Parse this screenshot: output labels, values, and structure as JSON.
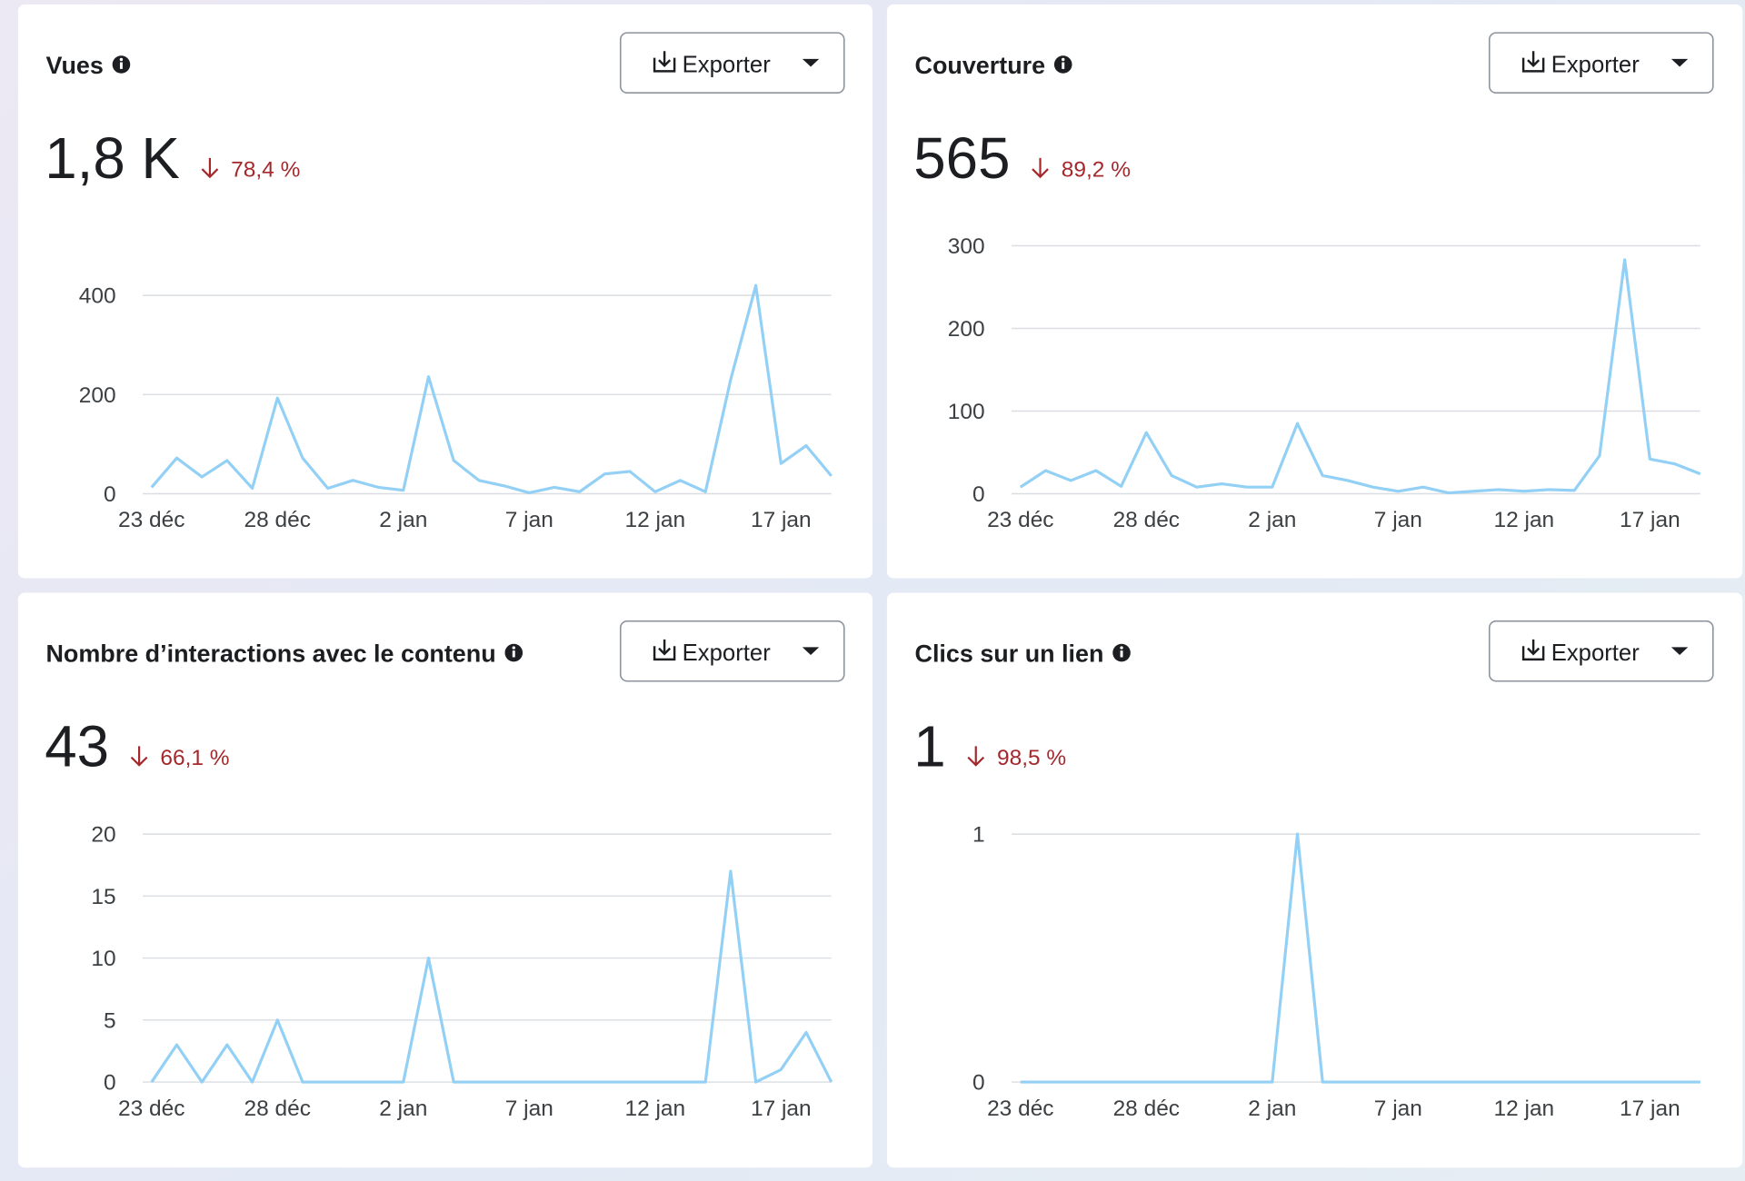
{
  "export_label": "Exporter",
  "chart_data": [
    {
      "type": "line",
      "title": "Vues",
      "metric": "1,8 K",
      "change": "78,4 %",
      "categories": [
        "23 déc",
        null,
        null,
        null,
        null,
        "28 déc",
        null,
        null,
        null,
        null,
        "2 jan",
        null,
        null,
        null,
        null,
        "7 jan",
        null,
        null,
        null,
        null,
        "12 jan",
        null,
        null,
        null,
        null,
        "17 jan",
        null,
        null
      ],
      "series": [
        {
          "name": "Vues",
          "color": "#93d0f5",
          "values": [
            13,
            72,
            34,
            67,
            11,
            193,
            72,
            11,
            27,
            13,
            7,
            236,
            67,
            27,
            16,
            2,
            13,
            4,
            40,
            45,
            4,
            27,
            4,
            230,
            420,
            61,
            97,
            36
          ]
        }
      ],
      "ylim": [
        0,
        500
      ],
      "yticks": [
        0,
        200,
        400
      ],
      "grid": true
    },
    {
      "type": "line",
      "title": "Couverture",
      "metric": "565",
      "change": "89,2 %",
      "categories": [
        "23 déc",
        null,
        null,
        null,
        null,
        "28 déc",
        null,
        null,
        null,
        null,
        "2 jan",
        null,
        null,
        null,
        null,
        "7 jan",
        null,
        null,
        null,
        null,
        "12 jan",
        null,
        null,
        null,
        null,
        "17 jan",
        null,
        null
      ],
      "series": [
        {
          "name": "Couverture",
          "color": "#93d0f5",
          "values": [
            8,
            28,
            16,
            28,
            9,
            74,
            22,
            8,
            12,
            8,
            8,
            85,
            22,
            16,
            8,
            3,
            8,
            1,
            3,
            5,
            3,
            5,
            4,
            46,
            283,
            42,
            36,
            24
          ]
        }
      ],
      "ylim": [
        0,
        300
      ],
      "yticks": [
        0,
        100,
        200,
        300
      ],
      "grid": true
    },
    {
      "type": "line",
      "title": "Nombre d’interactions avec le contenu",
      "metric": "43",
      "change": "66,1 %",
      "categories": [
        "23 déc",
        null,
        null,
        null,
        null,
        "28 déc",
        null,
        null,
        null,
        null,
        "2 jan",
        null,
        null,
        null,
        null,
        "7 jan",
        null,
        null,
        null,
        null,
        "12 jan",
        null,
        null,
        null,
        null,
        "17 jan",
        null,
        null
      ],
      "series": [
        {
          "name": "Nombre d’interactions avec le contenu",
          "color": "#93d0f5",
          "values": [
            0,
            3,
            0,
            3,
            0,
            5,
            0,
            0,
            0,
            0,
            0,
            10,
            0,
            0,
            0,
            0,
            0,
            0,
            0,
            0,
            0,
            0,
            0,
            17,
            0,
            1,
            4,
            0
          ]
        }
      ],
      "ylim": [
        0,
        20
      ],
      "yticks": [
        0,
        5,
        10,
        15,
        20
      ],
      "grid": true
    },
    {
      "type": "line",
      "title": "Clics sur un lien",
      "metric": "1",
      "change": "98,5 %",
      "categories": [
        "23 déc",
        null,
        null,
        null,
        null,
        "28 déc",
        null,
        null,
        null,
        null,
        "2 jan",
        null,
        null,
        null,
        null,
        "7 jan",
        null,
        null,
        null,
        null,
        "12 jan",
        null,
        null,
        null,
        null,
        "17 jan",
        null,
        null
      ],
      "series": [
        {
          "name": "Clics sur un lien",
          "color": "#93d0f5",
          "values": [
            0,
            0,
            0,
            0,
            0,
            0,
            0,
            0,
            0,
            0,
            0,
            1,
            0,
            0,
            0,
            0,
            0,
            0,
            0,
            0,
            0,
            0,
            0,
            0,
            0,
            0,
            0,
            0
          ]
        }
      ],
      "ylim": [
        0,
        1
      ],
      "yticks": [
        0,
        1
      ],
      "grid": true
    }
  ]
}
